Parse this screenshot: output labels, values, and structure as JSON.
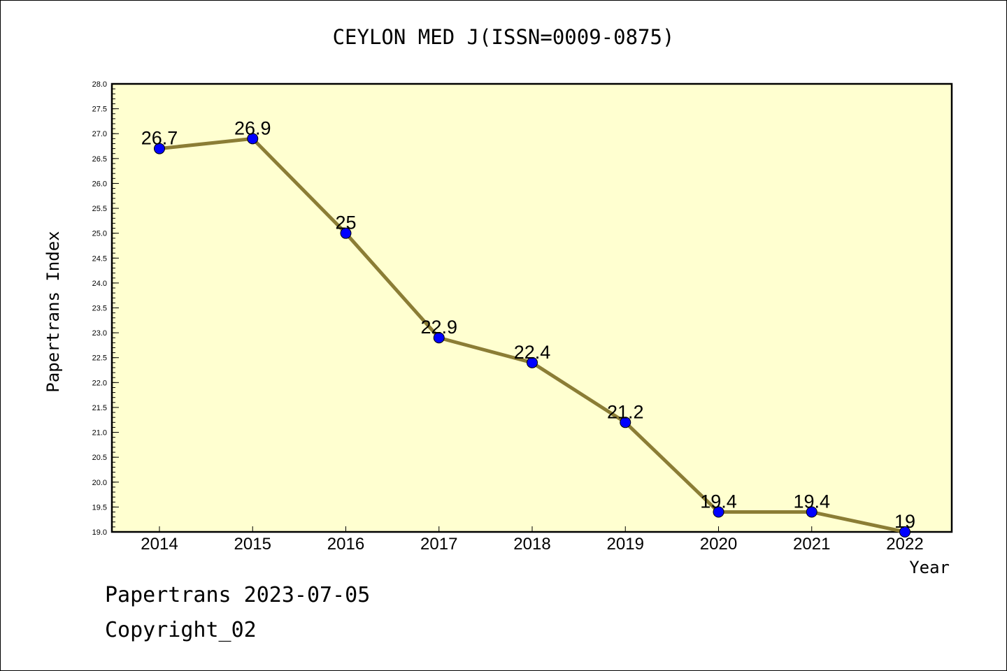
{
  "chart_data": {
    "type": "line",
    "title": "CEYLON MED J(ISSN=0009-0875)",
    "xlabel": "Year",
    "ylabel": "Papertrans Index",
    "x": [
      "2014",
      "2015",
      "2016",
      "2017",
      "2018",
      "2019",
      "2020",
      "2021",
      "2022"
    ],
    "series": [
      {
        "values": [
          26.7,
          26.9,
          25,
          22.9,
          22.4,
          21.2,
          19.4,
          19.4,
          19
        ]
      }
    ],
    "data_labels": [
      "26.7",
      "26.9",
      "25",
      "22.9",
      "22.4",
      "21.2",
      "19.4",
      "19.4",
      "19"
    ],
    "ylim": [
      19.0,
      28.0
    ],
    "yticks": [
      "19.0",
      "19.5",
      "20.0",
      "20.5",
      "21.0",
      "21.5",
      "22.0",
      "22.5",
      "23.0",
      "23.5",
      "24.0",
      "24.5",
      "25.0",
      "25.5",
      "26.0",
      "26.5",
      "27.0",
      "27.5",
      "28.0"
    ],
    "grid": false,
    "colors": {
      "plot_bg": "#ffffd0",
      "line": "#8b7d35",
      "marker": "#0000ff"
    }
  },
  "footer": {
    "line1": "Papertrans 2023-07-05",
    "line2": "Copyright_02"
  }
}
